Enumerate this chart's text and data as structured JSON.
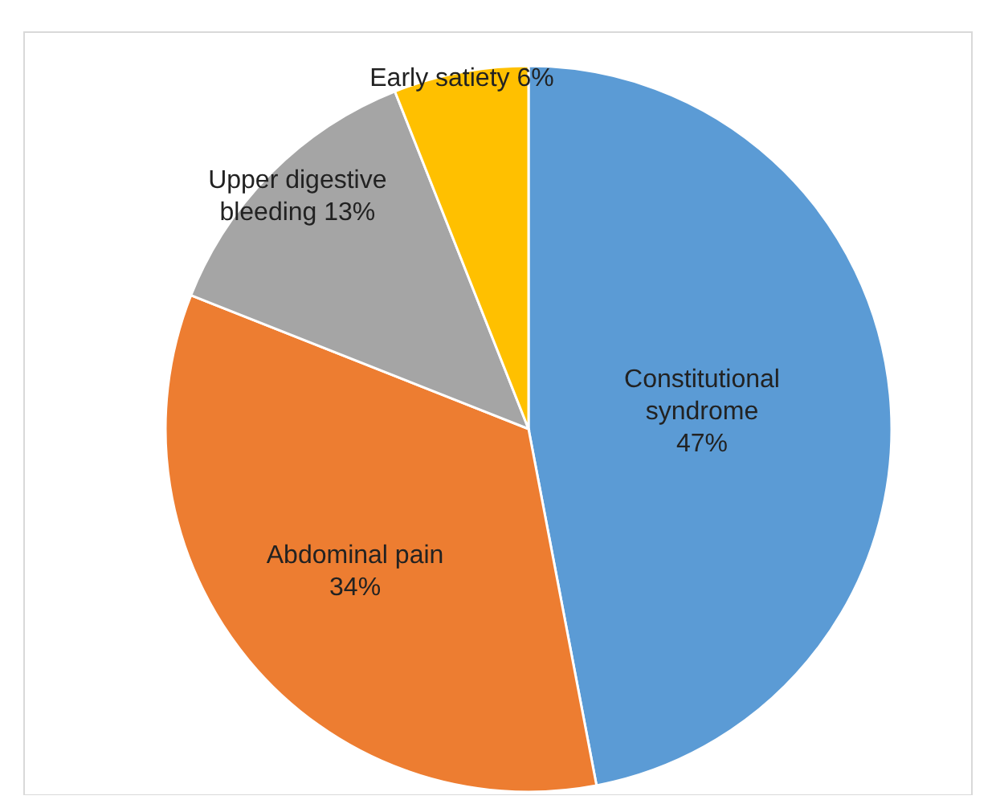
{
  "chart_data": {
    "type": "pie",
    "categories": [
      "Constitutional syndrome",
      "Abdominal pain",
      "Upper digestive bleeding",
      "Early satiety"
    ],
    "values": [
      47,
      34,
      13,
      6
    ],
    "colors": [
      "#5b9bd5",
      "#ed7d31",
      "#a5a5a5",
      "#ffc000"
    ],
    "value_labels": [
      "47%",
      "34%",
      "13%",
      "6%"
    ]
  }
}
